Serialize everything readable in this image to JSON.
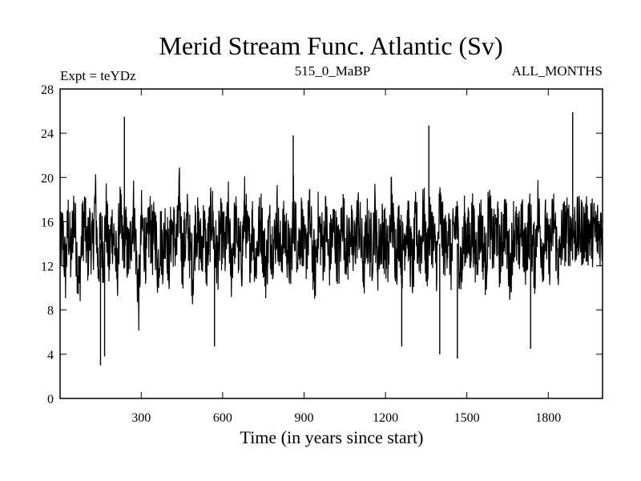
{
  "chart_data": {
    "type": "line",
    "title": "Merid Stream Func. Atlantic (Sv)",
    "subtitle_left": "Expt = teYDz",
    "subtitle_center": "515_0_MaBP",
    "subtitle_right": "ALL_MONTHS",
    "xlabel": "Time (in years since start)",
    "ylabel": "",
    "xlim": [
      1,
      2000
    ],
    "ylim": [
      0,
      28
    ],
    "x_ticks": [
      300,
      600,
      900,
      1200,
      1500,
      1800
    ],
    "y_ticks": [
      0,
      4,
      8,
      12,
      16,
      20,
      24,
      28
    ],
    "x_tick_labels": [
      "300",
      "600",
      "900",
      "1200",
      "1500",
      "1800"
    ],
    "y_tick_labels": [
      "0",
      "4",
      "8",
      "12",
      "16",
      "20",
      "24",
      "28"
    ],
    "grid": false,
    "line_color": "#000000",
    "series": [
      {
        "x_start": 1,
        "x_step": 10,
        "values": [
          13.2,
          14.8,
          11.6,
          15.9,
          12.4,
          17.1,
          13.8,
          10.2,
          14.5,
          16.3,
          12.9,
          15.1,
          13.4,
          18.2,
          11.8,
          14.9,
          13.1,
          16.7,
          12.2,
          15.6,
          14.3,
          11.1,
          16.9,
          13.7,
          15.2,
          12.6,
          14.1,
          17.5,
          13.3,
          9.1,
          15.8,
          14.4,
          12.8,
          16.1,
          13.9,
          15.4,
          11.9,
          14.7,
          13.2,
          16.4,
          12.1,
          15.3,
          14.8,
          13.6,
          17.9,
          12.7,
          14.2,
          15.9,
          13.1,
          11.4,
          16.2,
          14.6,
          13.4,
          15.7,
          12.3,
          14.9,
          16.8,
          13.8,
          12.5,
          15.1,
          14.4,
          13.2,
          16.5,
          11.7,
          14.8,
          15.6,
          13.1,
          12.9,
          17.2,
          14.3,
          13.7,
          15.8,
          12.2,
          14.6,
          16.1,
          13.5,
          11.8,
          15.4,
          14.1,
          13.9,
          16.6,
          12.8,
          14.5,
          15.2,
          13.3,
          12.1,
          17.4,
          14.7,
          13.8,
          15.9,
          12.6,
          14.2,
          16.3,
          13.1,
          11.5,
          15.7,
          14.9,
          13.4,
          16.2,
          12.4,
          14.3,
          15.5,
          13.6,
          12.7,
          17.1,
          14.5,
          13.2,
          15.8,
          12.9,
          14.8,
          16.4,
          13.7,
          11.9,
          15.3,
          14.2,
          13.5,
          16.7,
          12.5,
          14.6,
          15.1,
          13.8,
          12.3,
          17.6,
          14.4,
          13.1,
          15.9,
          12.8,
          14.7,
          16.2,
          13.3,
          11.6,
          15.6,
          14.1,
          13.9,
          16.8,
          12.2,
          14.9,
          15.4,
          13.4,
          12.6,
          17.3,
          14.6,
          13.7,
          15.7,
          12.4,
          14.4,
          16.5,
          13.2,
          11.8,
          15.2,
          14.8,
          13.6,
          16.1,
          12.7,
          14.2,
          15.8,
          13.5,
          12.1,
          17.2,
          14.3,
          13.9,
          15.6,
          12.9,
          14.5,
          16.3,
          13.1,
          11.7,
          15.5,
          14.7,
          13.3,
          16.6,
          12.5,
          14.1,
          15.9,
          13.8,
          12.4,
          17.5,
          14.8,
          13.4,
          15.3,
          12.6,
          14.6,
          16.4,
          13.6,
          11.9,
          15.1
        ]
      }
    ],
    "extreme_spikes": [
      {
        "x": 150,
        "y": 3.0
      },
      {
        "x": 238,
        "y": 25.5
      },
      {
        "x": 165,
        "y": 3.8
      },
      {
        "x": 860,
        "y": 23.8
      },
      {
        "x": 1360,
        "y": 24.7
      },
      {
        "x": 1400,
        "y": 4.0
      },
      {
        "x": 1465,
        "y": 3.6
      },
      {
        "x": 1890,
        "y": 25.9
      },
      {
        "x": 1735,
        "y": 4.5
      },
      {
        "x": 570,
        "y": 4.7
      },
      {
        "x": 1260,
        "y": 4.7
      }
    ]
  }
}
